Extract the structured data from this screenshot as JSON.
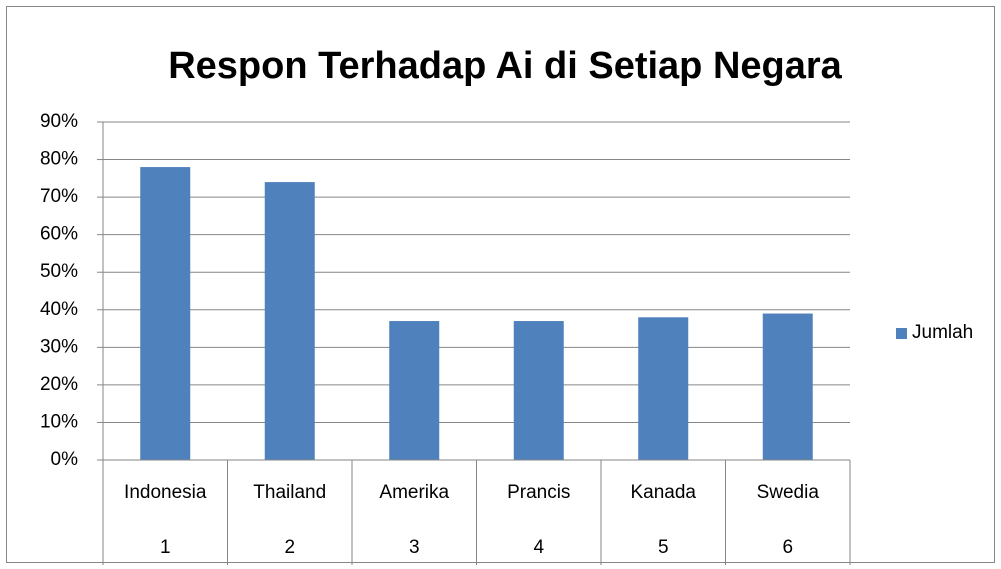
{
  "chart_data": {
    "type": "bar",
    "title": "Respon Terhadap Ai di Setiap Negara",
    "categories": [
      "Indonesia",
      "Thailand",
      "Amerika",
      "Prancis",
      "Kanada",
      "Swedia"
    ],
    "categories_level2": [
      1,
      2,
      3,
      4,
      5,
      6
    ],
    "series": [
      {
        "name": "Jumlah",
        "color": "#4f81bd",
        "values": [
          78,
          74,
          37,
          37,
          38,
          39
        ]
      }
    ],
    "ylim": [
      0,
      90
    ],
    "yticks": [
      {
        "value": 0,
        "label": "0%"
      },
      {
        "value": 10,
        "label": "10%"
      },
      {
        "value": 20,
        "label": "20%"
      },
      {
        "value": 30,
        "label": "30%"
      },
      {
        "value": 40,
        "label": "40%"
      },
      {
        "value": 50,
        "label": "50%"
      },
      {
        "value": 60,
        "label": "60%"
      },
      {
        "value": 70,
        "label": "70%"
      },
      {
        "value": 80,
        "label": "80%"
      },
      {
        "value": 90,
        "label": "90%"
      }
    ],
    "grid": true,
    "legend": "right"
  }
}
